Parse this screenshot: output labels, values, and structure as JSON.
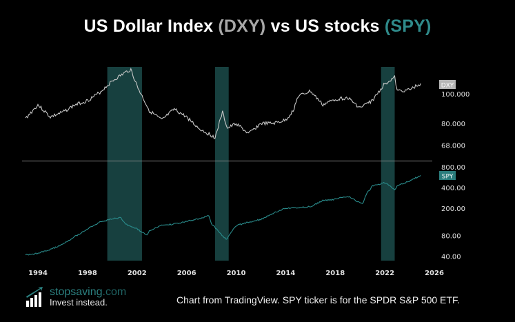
{
  "title": {
    "prefix": "US Dollar Index ",
    "dxy": "(DXY)",
    "middle": " vs US stocks ",
    "spy": "(SPY)"
  },
  "colors": {
    "dxy_line": "#c8c8c8",
    "spy_line": "#2a8c8c",
    "shading": "#17403f",
    "dxy_badge": "#b5b5b5",
    "spy_badge": "#2a7c7c"
  },
  "footer": {
    "brand": "stopsaving",
    "brand_domain": ".com",
    "tagline": "Invest instead.",
    "note": "Chart from TradingView. SPY ticker is for the SPDR S&P 500 ETF."
  },
  "chart_data": [
    {
      "type": "line",
      "series": [
        {
          "name": "DXY",
          "x": [
            1993,
            1994,
            1995,
            1996,
            1997,
            1998,
            1999,
            2000,
            2001,
            2001.5,
            2002,
            2003,
            2004,
            2005,
            2006,
            2007,
            2008.3,
            2008.9,
            2009.3,
            2010,
            2011,
            2012,
            2013,
            2014,
            2014.6,
            2015,
            2016,
            2017,
            2018,
            2019,
            2020,
            2021,
            2022,
            2022.8,
            2023,
            2024,
            2024.9
          ],
          "values": [
            83,
            92,
            84,
            87,
            92,
            95,
            101,
            110,
            117,
            120,
            106,
            88,
            82,
            89,
            84,
            77,
            72,
            87,
            77,
            80,
            74,
            80,
            80,
            82,
            88,
            98,
            102,
            92,
            96,
            97,
            90,
            95,
            108,
            113,
            102,
            103,
            108
          ]
        }
      ],
      "yscale": "log",
      "yticks": [
        68,
        80,
        100
      ],
      "ytick_labels": [
        "68.000",
        "80.000",
        "100.000"
      ],
      "ylim": [
        63,
        128
      ],
      "badge": "DXY"
    },
    {
      "type": "line",
      "series": [
        {
          "name": "SPY",
          "x": [
            1993,
            1994,
            1995,
            1996,
            1997,
            1998,
            1999,
            2000,
            2000.7,
            2001,
            2002,
            2002.8,
            2003,
            2004,
            2005,
            2006,
            2007,
            2007.8,
            2008,
            2009.2,
            2010,
            2011,
            2012,
            2013,
            2014,
            2015,
            2016,
            2017,
            2018,
            2019,
            2020.2,
            2020.5,
            2021,
            2022,
            2022.8,
            2023,
            2024,
            2024.9
          ],
          "values": [
            42,
            44,
            50,
            60,
            78,
            100,
            125,
            140,
            145,
            120,
            100,
            80,
            95,
            112,
            118,
            128,
            142,
            155,
            120,
            70,
            112,
            125,
            138,
            170,
            200,
            205,
            210,
            260,
            270,
            300,
            230,
            320,
            420,
            470,
            370,
            420,
            500,
            600
          ]
        }
      ],
      "yscale": "log",
      "yticks": [
        40,
        80,
        200,
        400,
        800
      ],
      "ytick_labels": [
        "40.00",
        "80.00",
        "200.00",
        "400.00",
        "800.00"
      ],
      "ylim": [
        36,
        880
      ],
      "badge": "SPY"
    }
  ],
  "x_axis": {
    "ticks": [
      1994,
      1998,
      2002,
      2006,
      2010,
      2014,
      2018,
      2022,
      2026
    ],
    "range": [
      1992.7,
      2028
    ]
  },
  "shaded_periods": [
    [
      1999.6,
      2002.4
    ],
    [
      2008.3,
      2009.4
    ],
    [
      2021.7,
      2022.8
    ]
  ]
}
